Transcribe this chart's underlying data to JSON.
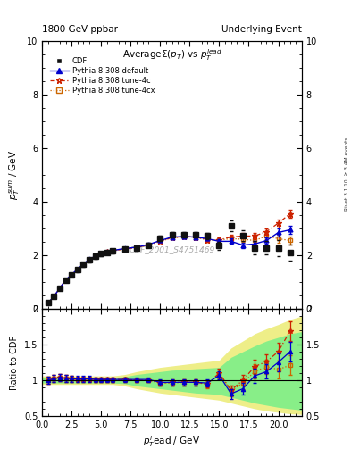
{
  "title_left": "1800 GeV ppbar",
  "title_right": "Underlying Event",
  "plot_title": "AverageΣ(p_{T}) vs p_{T}^{lead}",
  "xlabel": "p_{T}^{l}ead / GeV",
  "ylabel_main": "p_{T}^{s}um / GeV",
  "ylabel_ratio": "Ratio to CDF",
  "right_label": "Rivet 3.1.10, ≥ 3.4M events",
  "watermark": "CDF_2001_S4751469",
  "xlim": [
    0,
    22
  ],
  "ylim_main": [
    0,
    10
  ],
  "ylim_ratio": [
    0.5,
    2.0
  ],
  "yticks_main": [
    0,
    2,
    4,
    6,
    8,
    10
  ],
  "yticks_ratio": [
    0.5,
    1.0,
    1.5,
    2.0
  ],
  "cdf_x": [
    0.5,
    1.0,
    1.5,
    2.0,
    2.5,
    3.0,
    3.5,
    4.0,
    4.5,
    5.0,
    5.5,
    6.0,
    7.0,
    8.0,
    9.0,
    10.0,
    11.0,
    12.0,
    13.0,
    14.0,
    15.0,
    16.0,
    17.0,
    18.0,
    19.0,
    20.0,
    21.0
  ],
  "cdf_y": [
    0.22,
    0.45,
    0.75,
    1.05,
    1.25,
    1.45,
    1.65,
    1.82,
    1.95,
    2.05,
    2.1,
    2.15,
    2.22,
    2.28,
    2.38,
    2.62,
    2.75,
    2.78,
    2.75,
    2.72,
    2.35,
    3.1,
    2.72,
    2.28,
    2.28,
    2.28,
    2.1
  ],
  "cdf_yerr": [
    0.02,
    0.04,
    0.05,
    0.06,
    0.06,
    0.07,
    0.07,
    0.08,
    0.08,
    0.08,
    0.08,
    0.09,
    0.09,
    0.09,
    0.09,
    0.1,
    0.1,
    0.1,
    0.1,
    0.12,
    0.15,
    0.2,
    0.2,
    0.25,
    0.25,
    0.3,
    0.3
  ],
  "py_default_x": [
    0.5,
    1.0,
    1.5,
    2.0,
    2.5,
    3.0,
    3.5,
    4.0,
    4.5,
    5.0,
    5.5,
    6.0,
    7.0,
    8.0,
    9.0,
    10.0,
    11.0,
    12.0,
    13.0,
    14.0,
    15.0,
    16.0,
    17.0,
    18.0,
    19.0,
    20.0,
    21.0
  ],
  "py_default_y": [
    0.22,
    0.46,
    0.78,
    1.08,
    1.28,
    1.48,
    1.68,
    1.85,
    1.97,
    2.08,
    2.13,
    2.18,
    2.25,
    2.3,
    2.4,
    2.55,
    2.68,
    2.7,
    2.68,
    2.62,
    2.52,
    2.52,
    2.38,
    2.42,
    2.55,
    2.85,
    2.95
  ],
  "py_default_yerr": [
    0.01,
    0.02,
    0.03,
    0.04,
    0.04,
    0.05,
    0.05,
    0.05,
    0.05,
    0.05,
    0.05,
    0.05,
    0.05,
    0.05,
    0.05,
    0.06,
    0.06,
    0.06,
    0.06,
    0.07,
    0.08,
    0.1,
    0.1,
    0.12,
    0.12,
    0.15,
    0.15
  ],
  "py_4c_x": [
    0.5,
    1.0,
    1.5,
    2.0,
    2.5,
    3.0,
    3.5,
    4.0,
    4.5,
    5.0,
    5.5,
    6.0,
    7.0,
    8.0,
    9.0,
    10.0,
    11.0,
    12.0,
    13.0,
    14.0,
    15.0,
    16.0,
    17.0,
    18.0,
    19.0,
    20.0,
    21.0
  ],
  "py_4c_y": [
    0.22,
    0.46,
    0.78,
    1.07,
    1.27,
    1.47,
    1.67,
    1.84,
    1.96,
    2.07,
    2.12,
    2.17,
    2.24,
    2.29,
    2.38,
    2.53,
    2.66,
    2.7,
    2.68,
    2.58,
    2.58,
    2.68,
    2.72,
    2.72,
    2.88,
    3.2,
    3.55
  ],
  "py_4c_yerr": [
    0.01,
    0.02,
    0.03,
    0.04,
    0.04,
    0.05,
    0.05,
    0.05,
    0.05,
    0.05,
    0.05,
    0.05,
    0.05,
    0.05,
    0.05,
    0.06,
    0.06,
    0.06,
    0.06,
    0.07,
    0.08,
    0.1,
    0.1,
    0.12,
    0.12,
    0.15,
    0.15
  ],
  "py_4cx_x": [
    0.5,
    1.0,
    1.5,
    2.0,
    2.5,
    3.0,
    3.5,
    4.0,
    4.5,
    5.0,
    5.5,
    6.0,
    7.0,
    8.0,
    9.0,
    10.0,
    11.0,
    12.0,
    13.0,
    14.0,
    15.0,
    16.0,
    17.0,
    18.0,
    19.0,
    20.0,
    21.0
  ],
  "py_4cx_y": [
    0.22,
    0.46,
    0.78,
    1.07,
    1.27,
    1.47,
    1.67,
    1.83,
    1.95,
    2.06,
    2.11,
    2.16,
    2.23,
    2.28,
    2.37,
    2.52,
    2.65,
    2.69,
    2.68,
    2.57,
    2.57,
    2.62,
    2.6,
    2.55,
    2.72,
    2.62,
    2.55
  ],
  "py_4cx_yerr": [
    0.01,
    0.02,
    0.03,
    0.04,
    0.04,
    0.05,
    0.05,
    0.05,
    0.05,
    0.05,
    0.05,
    0.05,
    0.05,
    0.05,
    0.05,
    0.06,
    0.06,
    0.06,
    0.06,
    0.07,
    0.08,
    0.1,
    0.1,
    0.12,
    0.12,
    0.15,
    0.15
  ],
  "ratio_default_y": [
    1.0,
    1.02,
    1.04,
    1.03,
    1.02,
    1.02,
    1.02,
    1.02,
    1.01,
    1.01,
    1.01,
    1.01,
    1.01,
    1.01,
    1.01,
    0.97,
    0.97,
    0.97,
    0.97,
    0.96,
    1.07,
    0.81,
    0.88,
    1.06,
    1.12,
    1.25,
    1.4
  ],
  "ratio_4c_y": [
    1.0,
    1.02,
    1.04,
    1.02,
    1.02,
    1.01,
    1.01,
    1.01,
    1.01,
    1.01,
    1.01,
    1.01,
    1.01,
    1.0,
    1.0,
    0.96,
    0.97,
    0.97,
    0.97,
    0.95,
    1.1,
    0.86,
    1.0,
    1.19,
    1.26,
    1.4,
    1.69
  ],
  "ratio_4cx_y": [
    1.0,
    1.02,
    1.04,
    1.02,
    1.02,
    1.01,
    1.01,
    1.01,
    1.0,
    1.0,
    1.0,
    1.0,
    1.01,
    1.0,
    1.0,
    0.96,
    0.96,
    0.97,
    0.97,
    0.94,
    1.09,
    0.85,
    0.96,
    1.12,
    1.19,
    1.15,
    1.21
  ],
  "ratio_default_err": [
    0.05,
    0.05,
    0.05,
    0.05,
    0.04,
    0.04,
    0.04,
    0.04,
    0.03,
    0.03,
    0.03,
    0.03,
    0.03,
    0.03,
    0.03,
    0.04,
    0.04,
    0.04,
    0.04,
    0.05,
    0.06,
    0.07,
    0.08,
    0.1,
    0.1,
    0.12,
    0.14
  ],
  "ratio_4c_err": [
    0.05,
    0.05,
    0.05,
    0.05,
    0.04,
    0.04,
    0.04,
    0.04,
    0.03,
    0.03,
    0.03,
    0.03,
    0.03,
    0.03,
    0.03,
    0.04,
    0.04,
    0.04,
    0.04,
    0.05,
    0.06,
    0.07,
    0.08,
    0.1,
    0.1,
    0.12,
    0.14
  ],
  "ratio_4cx_err": [
    0.05,
    0.05,
    0.05,
    0.05,
    0.04,
    0.04,
    0.04,
    0.04,
    0.03,
    0.03,
    0.03,
    0.03,
    0.03,
    0.03,
    0.03,
    0.04,
    0.04,
    0.04,
    0.04,
    0.05,
    0.06,
    0.07,
    0.08,
    0.1,
    0.1,
    0.12,
    0.14
  ],
  "band_yellow_x": [
    0,
    1,
    2,
    3,
    4,
    5,
    6,
    7,
    8,
    9,
    10,
    11,
    12,
    13,
    14,
    15,
    16,
    17,
    18,
    19,
    20,
    21,
    22
  ],
  "band_yellow_lo": [
    0.94,
    0.94,
    0.94,
    0.94,
    0.94,
    0.94,
    0.94,
    0.92,
    0.88,
    0.85,
    0.82,
    0.8,
    0.78,
    0.76,
    0.74,
    0.72,
    0.68,
    0.64,
    0.6,
    0.57,
    0.55,
    0.53,
    0.52
  ],
  "band_yellow_hi": [
    1.06,
    1.06,
    1.06,
    1.06,
    1.06,
    1.06,
    1.06,
    1.08,
    1.12,
    1.15,
    1.18,
    1.2,
    1.22,
    1.24,
    1.26,
    1.28,
    1.45,
    1.55,
    1.65,
    1.72,
    1.78,
    1.85,
    1.9
  ],
  "band_green_x": [
    0,
    1,
    2,
    3,
    4,
    5,
    6,
    7,
    8,
    9,
    10,
    11,
    12,
    13,
    14,
    15,
    16,
    17,
    18,
    19,
    20,
    21,
    22
  ],
  "band_green_lo": [
    0.96,
    0.96,
    0.96,
    0.96,
    0.96,
    0.96,
    0.96,
    0.95,
    0.92,
    0.9,
    0.88,
    0.86,
    0.84,
    0.82,
    0.81,
    0.8,
    0.76,
    0.72,
    0.68,
    0.65,
    0.62,
    0.6,
    0.58
  ],
  "band_green_hi": [
    1.04,
    1.04,
    1.04,
    1.04,
    1.04,
    1.04,
    1.04,
    1.05,
    1.08,
    1.1,
    1.12,
    1.14,
    1.15,
    1.16,
    1.17,
    1.18,
    1.32,
    1.4,
    1.48,
    1.55,
    1.6,
    1.65,
    1.68
  ],
  "color_default": "#0000cc",
  "color_4c": "#cc2200",
  "color_4cx": "#cc6600",
  "color_cdf": "#111111",
  "color_yellow": "#eeee88",
  "color_green": "#88ee88",
  "color_bg": "#ffffff"
}
